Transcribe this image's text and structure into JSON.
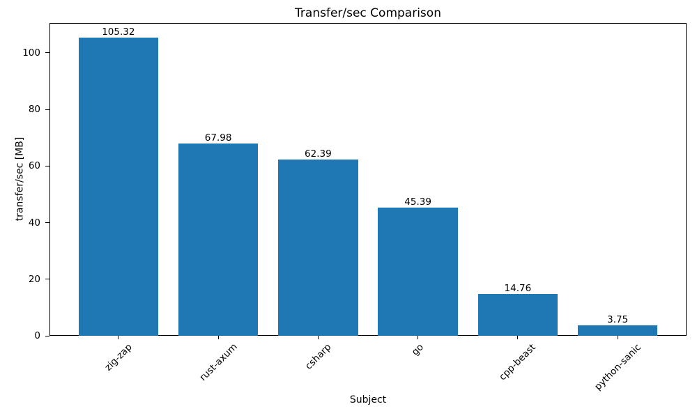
{
  "chart_data": {
    "type": "bar",
    "title": "Transfer/sec Comparison",
    "xlabel": "Subject",
    "ylabel": "transfer/sec [MB]",
    "categories": [
      "zig-zap",
      "rust-axum",
      "csharp",
      "go",
      "cpp-beast",
      "python-sanic"
    ],
    "values": [
      105.32,
      67.98,
      62.39,
      45.39,
      14.76,
      3.75
    ],
    "value_labels": [
      "105.32",
      "67.98",
      "62.39",
      "45.39",
      "14.76",
      "3.75"
    ],
    "yticks": [
      0,
      20,
      40,
      60,
      80,
      100
    ],
    "ylim": [
      0,
      110.59
    ],
    "x_tick_rotation_deg": 45,
    "bar_color": "#1f77b4",
    "text_color": "#000000",
    "spine_color": "#000000",
    "background_color": "#ffffff",
    "grid": false,
    "legend": "none",
    "bar_width_fraction": 0.8
  }
}
